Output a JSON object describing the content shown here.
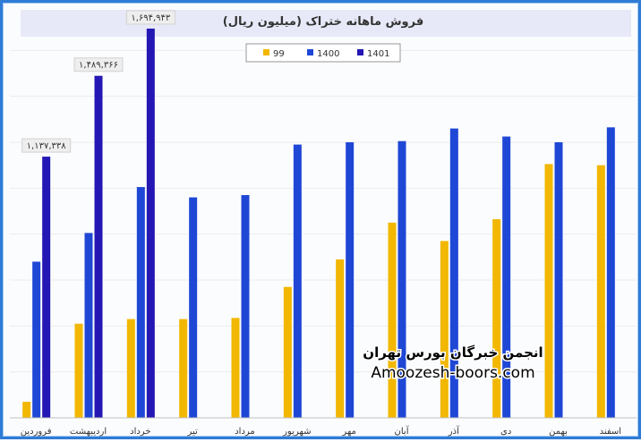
{
  "chart_data": {
    "type": "bar",
    "title": "فروش ماهانه ختراک (میلیون ریال)",
    "categories": [
      "فروردین",
      "اردیبهشت",
      "خرداد",
      "تیر",
      "مرداد",
      "شهریور",
      "مهر",
      "آبان",
      "آذر",
      "دی",
      "بهمن",
      "اسفند"
    ],
    "series": [
      {
        "name": "99",
        "color": "#f2b700",
        "values": [
          70000,
          410000,
          430000,
          430000,
          435000,
          570000,
          690000,
          850000,
          770000,
          865000,
          1105000,
          1100000
        ]
      },
      {
        "name": "1400",
        "color": "#1f47d6",
        "values": [
          680000,
          805000,
          1005000,
          960000,
          970000,
          1190000,
          1200000,
          1205000,
          1260000,
          1225000,
          1200000,
          1265000
        ]
      },
      {
        "name": "1401",
        "color": "#2417b3",
        "values": [
          1137338,
          1489366,
          1694943,
          null,
          null,
          null,
          null,
          null,
          null,
          null,
          null,
          null
        ]
      }
    ],
    "data_labels": [
      {
        "series": "1401",
        "category": "فروردین",
        "text": "۱,۱۳۷,۳۳۸"
      },
      {
        "series": "1401",
        "category": "اردیبهشت",
        "text": "۱,۴۸۹,۳۶۶"
      },
      {
        "series": "1401",
        "category": "خرداد",
        "text": "۱,۶۹۴,۹۴۳"
      }
    ],
    "ylim": [
      0,
      1800000
    ],
    "legend_position": "top-center",
    "grid": "faint horizontal"
  },
  "watermark": {
    "line1": "انجمن خبرگان بورس تهران",
    "line2": "Amoozesh-boors.com"
  }
}
